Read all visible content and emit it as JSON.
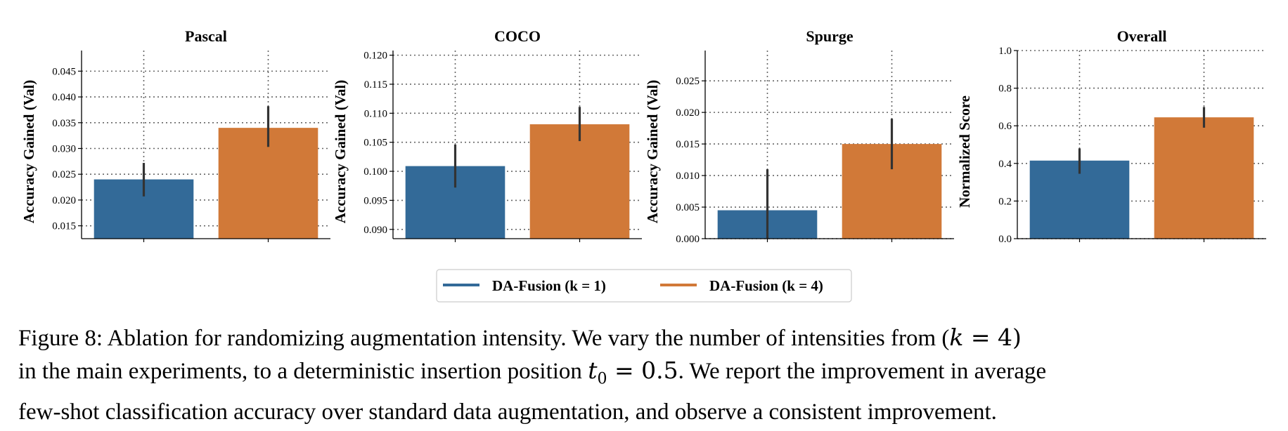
{
  "chart_data": [
    {
      "type": "bar",
      "title": "Pascal",
      "ylabel": "Accuracy Gained (Val)",
      "categories": [
        "DA-Fusion (k = 1)",
        "DA-Fusion (k = 4)"
      ],
      "values": [
        0.024,
        0.034
      ],
      "error_low": [
        0.0207,
        0.0303
      ],
      "error_high": [
        0.0272,
        0.0382
      ],
      "ylim": [
        0.0125,
        0.049
      ],
      "yticks": [
        0.015,
        0.02,
        0.025,
        0.03,
        0.035,
        0.04,
        0.045
      ],
      "ytick_labels": [
        "0.015",
        "0.020",
        "0.025",
        "0.030",
        "0.035",
        "0.040",
        "0.045"
      ],
      "grid": true
    },
    {
      "type": "bar",
      "title": "COCO",
      "ylabel": "Accuracy Gained (Val)",
      "categories": [
        "DA-Fusion (k = 1)",
        "DA-Fusion (k = 4)"
      ],
      "values": [
        0.1009,
        0.1081
      ],
      "error_low": [
        0.0972,
        0.1052
      ],
      "error_high": [
        0.1046,
        0.1111
      ],
      "ylim": [
        0.0884,
        0.1208
      ],
      "yticks": [
        0.09,
        0.095,
        0.1,
        0.105,
        0.11,
        0.115,
        0.12
      ],
      "ytick_labels": [
        "0.090",
        "0.095",
        "0.100",
        "0.105",
        "0.110",
        "0.115",
        "0.120"
      ],
      "grid": true
    },
    {
      "type": "bar",
      "title": "Spurge",
      "ylabel": "Accuracy Gained (Val)",
      "categories": [
        "DA-Fusion (k = 1)",
        "DA-Fusion (k = 4)"
      ],
      "values": [
        0.0045,
        0.015
      ],
      "error_low": [
        0.0,
        0.011
      ],
      "error_high": [
        0.011,
        0.019
      ],
      "ylim": [
        0.0,
        0.0298
      ],
      "yticks": [
        0.0,
        0.005,
        0.01,
        0.015,
        0.02,
        0.025
      ],
      "ytick_labels": [
        "0.000",
        "0.005",
        "0.010",
        "0.015",
        "0.020",
        "0.025"
      ],
      "grid": true
    },
    {
      "type": "bar",
      "title": "Overall",
      "ylabel": "Normalized Score",
      "categories": [
        "DA-Fusion (k = 1)",
        "DA-Fusion (k = 4)"
      ],
      "values": [
        0.415,
        0.645
      ],
      "error_low": [
        0.345,
        0.59
      ],
      "error_high": [
        0.48,
        0.7
      ],
      "ylim": [
        0.0,
        1.0
      ],
      "yticks": [
        0.0,
        0.2,
        0.4,
        0.6,
        0.8,
        1.0
      ],
      "ytick_labels": [
        "0.0",
        "0.2",
        "0.4",
        "0.6",
        "0.8",
        "1.0"
      ],
      "grid": true
    }
  ],
  "legend": {
    "placement": "bottom-center",
    "items": [
      {
        "label": "DA-Fusion (k = 1)",
        "color": "#336a98"
      },
      {
        "label": "DA-Fusion (k = 4)",
        "color": "#d17938"
      }
    ]
  },
  "colors": {
    "series_1": "#336a98",
    "series_2": "#d17938",
    "error_bar": "#333333",
    "grid": "#666666"
  },
  "caption": {
    "label": "Figure 8:",
    "line1_text": "Ablation for randomizing augmentation intensity. We vary the number of intensities from (",
    "line1_math_var": "k",
    "line1_math_rest": " = 4)",
    "line2_text": "in the main experiments, to a deterministic insertion position ",
    "line2_math_var": "t",
    "line2_math_sub": "0",
    "line2_math_rest": " = 0.5",
    "line2_after": ". We report the improvement in average",
    "line3_text": "few-shot classification accuracy over standard data augmentation, and observe a consistent improvement."
  }
}
